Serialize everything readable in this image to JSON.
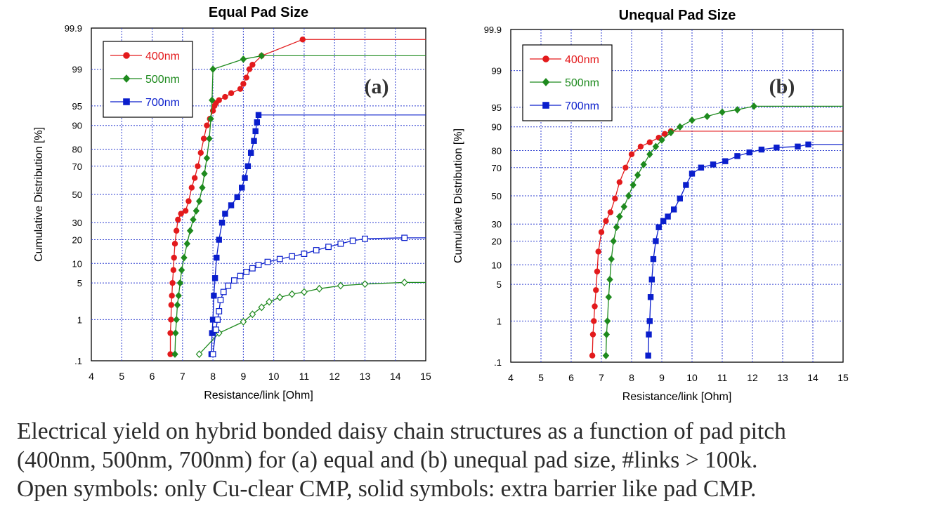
{
  "chart_data": [
    {
      "type": "scatter",
      "title": "Equal Pad Size",
      "panel_label": "(a)",
      "xlabel": "Resistance/link [Ohm]",
      "ylabel": "Cumulative Distribution [%]",
      "xlim": [
        4,
        15
      ],
      "x_ticks": [
        "4",
        "5",
        "6",
        "7",
        "8",
        "9",
        "10",
        "11",
        "12",
        "13",
        "14",
        "15"
      ],
      "y_scale": "probability",
      "ylim": [
        0.1,
        99.9
      ],
      "y_ticks": [
        0.1,
        1,
        5,
        10,
        20,
        30,
        50,
        70,
        80,
        90,
        95,
        99,
        99.9
      ],
      "y_tick_labels": [
        ".1",
        "1",
        "5",
        "10",
        "20",
        "30",
        "50",
        "70",
        "80",
        "90",
        "95",
        "99",
        "99.9"
      ],
      "grid": true,
      "legend_position": "top-left",
      "series": [
        {
          "name": "400nm",
          "color": "#e31a1c",
          "marker": "circle",
          "filled": true,
          "in_legend": true,
          "x": [
            6.6,
            6.6,
            6.62,
            6.63,
            6.65,
            6.67,
            6.7,
            6.72,
            6.75,
            6.8,
            6.85,
            6.95,
            7.1,
            7.2,
            7.3,
            7.4,
            7.5,
            7.6,
            7.7,
            7.8,
            7.9,
            8.0,
            8.05,
            8.1,
            8.2,
            8.4,
            8.6,
            8.9,
            9.0,
            9.1,
            9.2,
            9.3,
            9.6,
            10.95
          ],
          "y": [
            0.15,
            0.5,
            1,
            2,
            3,
            5,
            8,
            12,
            18,
            25,
            32,
            36,
            38,
            45,
            55,
            62,
            70,
            78,
            85,
            90,
            92,
            94,
            95,
            95.5,
            96,
            96.5,
            97,
            97.5,
            98,
            98.5,
            99,
            99.2,
            99.5,
            99.8
          ],
          "tail_to": 15
        },
        {
          "name": "500nm",
          "color": "#1e8a1e",
          "marker": "diamond",
          "filled": true,
          "in_legend": true,
          "x": [
            6.75,
            6.77,
            6.8,
            6.83,
            6.87,
            6.92,
            6.97,
            7.05,
            7.15,
            7.25,
            7.35,
            7.45,
            7.55,
            7.65,
            7.72,
            7.8,
            7.88,
            7.93,
            7.97,
            8.0,
            9.0,
            9.6
          ],
          "y": [
            0.15,
            0.5,
            1,
            2,
            3,
            5,
            8,
            12,
            18,
            25,
            32,
            38,
            45,
            55,
            65,
            75,
            85,
            92,
            96,
            99,
            99.4,
            99.5
          ],
          "tail_to": 15
        },
        {
          "name": "700nm",
          "color": "#0a1ecc",
          "marker": "square",
          "filled": true,
          "in_legend": true,
          "x": [
            7.95,
            7.97,
            8.0,
            8.03,
            8.07,
            8.12,
            8.2,
            8.3,
            8.4,
            8.6,
            8.8,
            8.95,
            9.05,
            9.15,
            9.25,
            9.35,
            9.4,
            9.45,
            9.5
          ],
          "y": [
            0.15,
            0.5,
            1,
            3,
            6,
            12,
            20,
            30,
            36,
            42,
            48,
            55,
            62,
            70,
            78,
            84,
            88,
            91,
            93
          ],
          "tail_to": 15
        },
        {
          "name": "500nm Cu-clear",
          "color": "#1e8a1e",
          "marker": "diamond",
          "filled": false,
          "in_legend": false,
          "x": [
            7.55,
            8.2,
            9.0,
            9.3,
            9.6,
            9.85,
            10.2,
            10.6,
            11.0,
            11.5,
            12.2,
            13.0,
            14.3
          ],
          "y": [
            0.15,
            0.5,
            0.9,
            1.3,
            1.8,
            2.3,
            2.8,
            3.2,
            3.5,
            4.0,
            4.5,
            4.8,
            5.1
          ],
          "tail_to": 15
        },
        {
          "name": "700nm Cu-clear",
          "color": "#0a1ecc",
          "marker": "square",
          "filled": false,
          "in_legend": false,
          "x": [
            8.0,
            8.1,
            8.15,
            8.2,
            8.25,
            8.35,
            8.5,
            8.7,
            8.9,
            9.1,
            9.3,
            9.5,
            9.8,
            10.2,
            10.6,
            11.0,
            11.4,
            11.8,
            12.2,
            12.6,
            13.0,
            14.3
          ],
          "y": [
            0.15,
            0.6,
            1.0,
            1.5,
            2.5,
            3.5,
            4.5,
            5.5,
            6.5,
            7.5,
            8.5,
            9.5,
            10.5,
            11.5,
            12.5,
            13.5,
            15,
            16.5,
            18,
            19.5,
            20.5,
            21
          ],
          "tail_to": 15
        }
      ],
      "legend": [
        "400nm",
        "500nm",
        "700nm"
      ]
    },
    {
      "type": "scatter",
      "title": "Unequal Pad Size",
      "panel_label": "(b)",
      "xlabel": "Resistance/link [Ohm]",
      "ylabel": "Cumulative Distribution [%]",
      "xlim": [
        4,
        15
      ],
      "x_ticks": [
        "4",
        "5",
        "6",
        "7",
        "8",
        "9",
        "10",
        "11",
        "12",
        "13",
        "14",
        "15"
      ],
      "y_scale": "probability",
      "ylim": [
        0.1,
        99.9
      ],
      "y_ticks": [
        0.1,
        1,
        5,
        10,
        20,
        30,
        50,
        70,
        80,
        90,
        95,
        99,
        99.9
      ],
      "y_tick_labels": [
        ".1",
        "1",
        "5",
        "10",
        "20",
        "30",
        "50",
        "70",
        "80",
        "90",
        "95",
        "99",
        "99.9"
      ],
      "grid": true,
      "legend_position": "top-left",
      "series": [
        {
          "name": "400nm",
          "color": "#e31a1c",
          "marker": "circle",
          "filled": true,
          "in_legend": true,
          "x": [
            6.7,
            6.72,
            6.75,
            6.78,
            6.82,
            6.86,
            6.9,
            7.0,
            7.15,
            7.3,
            7.45,
            7.6,
            7.8,
            8.0,
            8.3,
            8.6,
            8.9,
            9.1,
            9.3
          ],
          "y": [
            0.15,
            0.5,
            1,
            2,
            4,
            8,
            15,
            25,
            32,
            38,
            48,
            60,
            70,
            78,
            82,
            84,
            86,
            87.5,
            88.5
          ],
          "tail_to": 15
        },
        {
          "name": "500nm",
          "color": "#1e8a1e",
          "marker": "diamond",
          "filled": true,
          "in_legend": true,
          "x": [
            7.15,
            7.17,
            7.2,
            7.24,
            7.28,
            7.33,
            7.4,
            7.5,
            7.6,
            7.75,
            7.9,
            8.05,
            8.2,
            8.4,
            8.6,
            8.8,
            9.0,
            9.3,
            9.6,
            10.0,
            10.5,
            11.0,
            11.5,
            12.05
          ],
          "y": [
            0.15,
            0.5,
            1,
            3,
            6,
            12,
            20,
            28,
            35,
            42,
            50,
            58,
            65,
            72,
            78,
            82,
            85,
            88,
            90,
            92,
            93,
            94,
            94.5,
            95.2
          ],
          "tail_to": 15
        },
        {
          "name": "700nm",
          "color": "#0a1ecc",
          "marker": "square",
          "filled": true,
          "in_legend": true,
          "x": [
            8.55,
            8.57,
            8.6,
            8.63,
            8.67,
            8.72,
            8.8,
            8.9,
            9.05,
            9.2,
            9.4,
            9.6,
            9.8,
            10.0,
            10.3,
            10.7,
            11.1,
            11.5,
            11.9,
            12.3,
            12.8,
            13.5,
            13.85
          ],
          "y": [
            0.15,
            0.5,
            1,
            3,
            6,
            12,
            20,
            28,
            32,
            35,
            40,
            48,
            58,
            66,
            70,
            72,
            74,
            77,
            79,
            80.5,
            81.5,
            82,
            83
          ],
          "tail_to": 15
        }
      ],
      "legend": [
        "400nm",
        "500nm",
        "700nm"
      ]
    }
  ],
  "caption": {
    "line1": "Electrical yield on hybrid bonded daisy chain structures as a function of pad pitch",
    "line2": "(400nm, 500nm, 700nm) for (a) equal and (b) unequal pad size, #links > 100k.",
    "line3": "Open symbols: only Cu-clear CMP, solid symbols: extra barrier like pad CMP."
  }
}
